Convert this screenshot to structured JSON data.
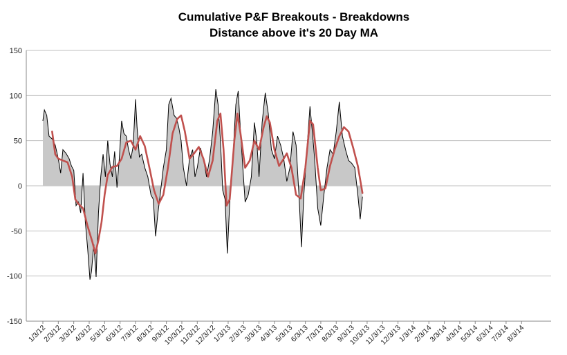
{
  "chart_data": {
    "type": "area",
    "title": "Cumulative P&F Breakouts - Breakdowns",
    "subtitle": "Distance above it's 20 Day MA",
    "xlabel": "",
    "ylabel": "",
    "ylim": [
      -150,
      150
    ],
    "y_ticks": [
      "150",
      "100",
      "50",
      "0",
      "-50",
      "-100",
      "-150"
    ],
    "x_tick_labels": [
      "1/3/12",
      "2/3/12",
      "3/3/12",
      "4/3/12",
      "5/3/12",
      "6/3/12",
      "7/3/12",
      "8/3/12",
      "9/3/12",
      "10/3/12",
      "11/3/12",
      "12/3/12",
      "1/3/13",
      "2/3/13",
      "3/3/13",
      "4/3/13",
      "5/3/13",
      "6/3/13",
      "7/3/13",
      "8/3/13",
      "9/3/13",
      "10/3/13",
      "11/3/13",
      "12/3/13",
      "1/3/14",
      "2/3/14",
      "3/3/14",
      "4/3/14",
      "5/3/14",
      "6/3/14",
      "7/3/14",
      "8/3/14"
    ],
    "grid": "horizontal",
    "colors": {
      "area_fill": "#c8c8c8",
      "area_line": "#000000",
      "ma_line": "#c0504d",
      "grid": "#bfbfbf"
    },
    "series": [
      {
        "values": [
          [
            0,
            72
          ],
          [
            0.1,
            84
          ],
          [
            0.25,
            78
          ],
          [
            0.4,
            55
          ],
          [
            0.6,
            52
          ],
          [
            0.8,
            45
          ],
          [
            1.0,
            30
          ],
          [
            1.15,
            14
          ],
          [
            1.3,
            40
          ],
          [
            1.5,
            36
          ],
          [
            1.7,
            30
          ],
          [
            1.85,
            22
          ],
          [
            2.0,
            17
          ],
          [
            2.15,
            -22
          ],
          [
            2.3,
            -18
          ],
          [
            2.45,
            -30
          ],
          [
            2.6,
            14
          ],
          [
            2.75,
            -40
          ],
          [
            2.9,
            -70
          ],
          [
            3.05,
            -104
          ],
          [
            3.15,
            -95
          ],
          [
            3.3,
            -65
          ],
          [
            3.45,
            -101
          ],
          [
            3.6,
            -30
          ],
          [
            3.75,
            10
          ],
          [
            3.9,
            35
          ],
          [
            4.05,
            10
          ],
          [
            4.2,
            50
          ],
          [
            4.35,
            24
          ],
          [
            4.5,
            10
          ],
          [
            4.65,
            38
          ],
          [
            4.8,
            -2
          ],
          [
            4.95,
            30
          ],
          [
            5.1,
            72
          ],
          [
            5.25,
            58
          ],
          [
            5.4,
            55
          ],
          [
            5.55,
            40
          ],
          [
            5.7,
            30
          ],
          [
            5.85,
            44
          ],
          [
            6.0,
            96
          ],
          [
            6.1,
            65
          ],
          [
            6.25,
            32
          ],
          [
            6.4,
            35
          ],
          [
            6.6,
            20
          ],
          [
            6.8,
            10
          ],
          [
            7.0,
            -10
          ],
          [
            7.15,
            -15
          ],
          [
            7.3,
            -56
          ],
          [
            7.45,
            -30
          ],
          [
            7.6,
            -10
          ],
          [
            7.8,
            20
          ],
          [
            8.0,
            40
          ],
          [
            8.15,
            90
          ],
          [
            8.3,
            97
          ],
          [
            8.5,
            78
          ],
          [
            8.65,
            75
          ],
          [
            8.8,
            65
          ],
          [
            8.95,
            50
          ],
          [
            9.1,
            20
          ],
          [
            9.3,
            0
          ],
          [
            9.5,
            30
          ],
          [
            9.7,
            40
          ],
          [
            9.85,
            10
          ],
          [
            10.0,
            20
          ],
          [
            10.2,
            42
          ],
          [
            10.4,
            30
          ],
          [
            10.6,
            10
          ],
          [
            10.8,
            30
          ],
          [
            11.0,
            60
          ],
          [
            11.2,
            107
          ],
          [
            11.35,
            90
          ],
          [
            11.5,
            50
          ],
          [
            11.65,
            -5
          ],
          [
            11.8,
            -15
          ],
          [
            11.95,
            -75
          ],
          [
            12.1,
            -20
          ],
          [
            12.3,
            30
          ],
          [
            12.5,
            90
          ],
          [
            12.65,
            105
          ],
          [
            12.8,
            60
          ],
          [
            12.95,
            20
          ],
          [
            13.1,
            -18
          ],
          [
            13.3,
            -10
          ],
          [
            13.5,
            10
          ],
          [
            13.7,
            70
          ],
          [
            13.85,
            50
          ],
          [
            14.0,
            10
          ],
          [
            14.2,
            70
          ],
          [
            14.4,
            103
          ],
          [
            14.6,
            80
          ],
          [
            14.8,
            40
          ],
          [
            15.0,
            30
          ],
          [
            15.2,
            55
          ],
          [
            15.4,
            45
          ],
          [
            15.6,
            30
          ],
          [
            15.8,
            5
          ],
          [
            16.0,
            20
          ],
          [
            16.2,
            60
          ],
          [
            16.4,
            45
          ],
          [
            16.6,
            -15
          ],
          [
            16.75,
            -68
          ],
          [
            16.9,
            -10
          ],
          [
            17.1,
            40
          ],
          [
            17.3,
            88
          ],
          [
            17.45,
            60
          ],
          [
            17.6,
            30
          ],
          [
            17.8,
            -25
          ],
          [
            18.0,
            -44
          ],
          [
            18.2,
            -10
          ],
          [
            18.4,
            20
          ],
          [
            18.6,
            40
          ],
          [
            18.8,
            35
          ],
          [
            19.0,
            60
          ],
          [
            19.2,
            93
          ],
          [
            19.4,
            55
          ],
          [
            19.6,
            40
          ],
          [
            19.8,
            28
          ],
          [
            20.0,
            25
          ],
          [
            20.2,
            20
          ],
          [
            20.4,
            -10
          ],
          [
            20.55,
            -37
          ],
          [
            20.7,
            -12
          ]
        ]
      },
      {
        "values": [
          [
            0.6,
            60
          ],
          [
            0.8,
            35
          ],
          [
            1.0,
            30
          ],
          [
            1.3,
            28
          ],
          [
            1.6,
            26
          ],
          [
            1.9,
            10
          ],
          [
            2.1,
            -15
          ],
          [
            2.3,
            -20
          ],
          [
            2.6,
            -25
          ],
          [
            2.9,
            -45
          ],
          [
            3.2,
            -62
          ],
          [
            3.4,
            -75
          ],
          [
            3.6,
            -60
          ],
          [
            3.8,
            -40
          ],
          [
            4.0,
            -10
          ],
          [
            4.2,
            12
          ],
          [
            4.5,
            21
          ],
          [
            4.8,
            22
          ],
          [
            5.1,
            30
          ],
          [
            5.4,
            48
          ],
          [
            5.7,
            50
          ],
          [
            6.0,
            40
          ],
          [
            6.3,
            55
          ],
          [
            6.6,
            44
          ],
          [
            6.9,
            20
          ],
          [
            7.2,
            -5
          ],
          [
            7.5,
            -20
          ],
          [
            7.8,
            -10
          ],
          [
            8.1,
            20
          ],
          [
            8.4,
            58
          ],
          [
            8.7,
            74
          ],
          [
            8.95,
            78
          ],
          [
            9.2,
            60
          ],
          [
            9.5,
            30
          ],
          [
            9.8,
            36
          ],
          [
            10.1,
            43
          ],
          [
            10.4,
            30
          ],
          [
            10.7,
            10
          ],
          [
            11.0,
            28
          ],
          [
            11.3,
            72
          ],
          [
            11.5,
            80
          ],
          [
            11.7,
            40
          ],
          [
            11.9,
            -22
          ],
          [
            12.1,
            -15
          ],
          [
            12.4,
            50
          ],
          [
            12.6,
            80
          ],
          [
            12.8,
            58
          ],
          [
            13.1,
            20
          ],
          [
            13.4,
            28
          ],
          [
            13.7,
            50
          ],
          [
            14.0,
            40
          ],
          [
            14.3,
            65
          ],
          [
            14.5,
            77
          ],
          [
            14.7,
            70
          ],
          [
            15.0,
            40
          ],
          [
            15.3,
            22
          ],
          [
            15.6,
            30
          ],
          [
            15.8,
            36
          ],
          [
            16.1,
            20
          ],
          [
            16.4,
            -10
          ],
          [
            16.7,
            -14
          ],
          [
            17.0,
            20
          ],
          [
            17.3,
            72
          ],
          [
            17.5,
            68
          ],
          [
            17.8,
            20
          ],
          [
            18.0,
            -5
          ],
          [
            18.3,
            -3
          ],
          [
            18.6,
            22
          ],
          [
            18.9,
            40
          ],
          [
            19.2,
            55
          ],
          [
            19.5,
            65
          ],
          [
            19.8,
            60
          ],
          [
            20.1,
            42
          ],
          [
            20.4,
            22
          ],
          [
            20.7,
            -8
          ]
        ]
      }
    ]
  }
}
